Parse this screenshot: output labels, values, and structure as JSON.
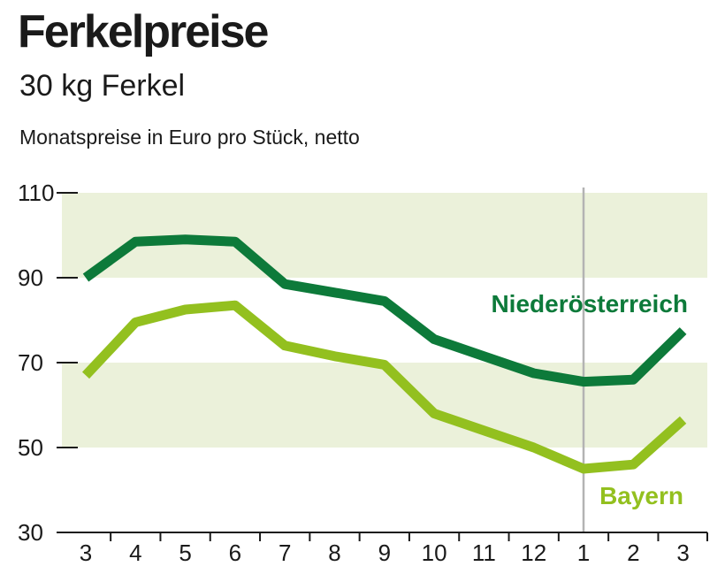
{
  "header": {
    "title": "Ferkelpreise",
    "subtitle": "30 kg Ferkel",
    "caption": "Monatspreise in Euro pro Stück, netto"
  },
  "colors": {
    "band": "#ebf1da",
    "dark_series": "#0d7a3a",
    "light_series": "#93c01f",
    "divider": "#b3b3b3",
    "axis": "#1a1a1a"
  },
  "chart_data": {
    "type": "line",
    "title": "Ferkelpreise",
    "subtitle": "30 kg Ferkel",
    "ylabel": "Monatspreise in Euro pro Stück, netto",
    "xlabel": "",
    "categories": [
      "3",
      "4",
      "5",
      "6",
      "7",
      "8",
      "9",
      "10",
      "11",
      "12",
      "1",
      "2",
      "3"
    ],
    "ylim": [
      30,
      110
    ],
    "yticks": [
      30,
      50,
      70,
      90,
      110
    ],
    "bands": [
      [
        50,
        70
      ],
      [
        90,
        110
      ]
    ],
    "divider_after_category_index": 10,
    "series": [
      {
        "name": "Niederösterreich",
        "values": [
          90,
          98.5,
          99,
          98.5,
          88.5,
          86.5,
          84.5,
          75.5,
          71.5,
          67.5,
          65.5,
          66,
          77.5
        ]
      },
      {
        "name": "Bayern",
        "values": [
          67,
          79.5,
          82.5,
          83.5,
          74,
          71.5,
          69.5,
          58,
          54,
          50,
          45,
          46,
          56.5
        ]
      }
    ]
  }
}
